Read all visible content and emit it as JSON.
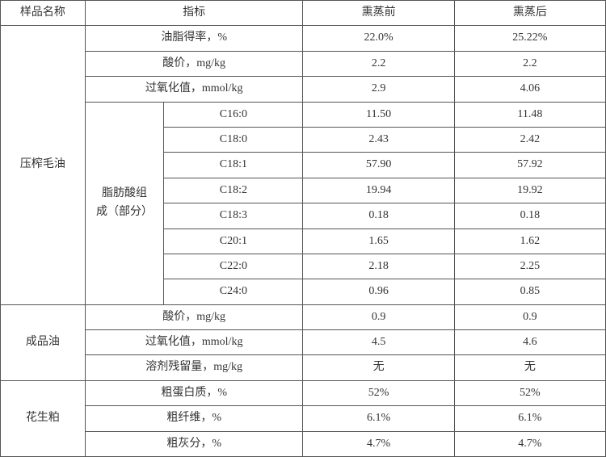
{
  "headers": {
    "sample": "样品名称",
    "indicator": "指标",
    "before": "熏蒸前",
    "after": "熏蒸后"
  },
  "samples": {
    "crude": "压榨毛油",
    "refined": "成品油",
    "meal": "花生粕"
  },
  "fatty_group_label": "脂肪酸组\n成（部分）",
  "rows": {
    "oil_yield": {
      "label": "油脂得率，%",
      "before": "22.0%",
      "after": "25.22%"
    },
    "acid1": {
      "label": "酸价，mg/kg",
      "before": "2.2",
      "after": "2.2"
    },
    "peroxide1": {
      "label": "过氧化值，mmol/kg",
      "before": "2.9",
      "after": "4.06"
    },
    "c160": {
      "label": "C16:0",
      "before": "11.50",
      "after": "11.48"
    },
    "c180": {
      "label": "C18:0",
      "before": "2.43",
      "after": "2.42"
    },
    "c181": {
      "label": "C18:1",
      "before": "57.90",
      "after": "57.92"
    },
    "c182": {
      "label": "C18:2",
      "before": "19.94",
      "after": "19.92"
    },
    "c183": {
      "label": "C18:3",
      "before": "0.18",
      "after": "0.18"
    },
    "c201": {
      "label": "C20:1",
      "before": "1.65",
      "after": "1.62"
    },
    "c220": {
      "label": "C22:0",
      "before": "2.18",
      "after": "2.25"
    },
    "c240": {
      "label": "C24:0",
      "before": "0.96",
      "after": "0.85"
    },
    "acid2": {
      "label": "酸价，mg/kg",
      "before": "0.9",
      "after": "0.9"
    },
    "peroxide2": {
      "label": "过氧化值，mmol/kg",
      "before": "4.5",
      "after": "4.6"
    },
    "solvent": {
      "label": "溶剂残留量，mg/kg",
      "before": "无",
      "after": "无"
    },
    "protein": {
      "label": "粗蛋白质，%",
      "before": "52%",
      "after": "52%"
    },
    "fiber": {
      "label": "粗纤维，%",
      "before": "6.1%",
      "after": "6.1%"
    },
    "ash": {
      "label": "粗灰分，%",
      "before": "4.7%",
      "after": "4.7%"
    }
  },
  "style": {
    "font_family": "SimSun",
    "font_size_pt": 11,
    "border_color": "#555555",
    "background": "#ffffff",
    "text_align": "center"
  }
}
